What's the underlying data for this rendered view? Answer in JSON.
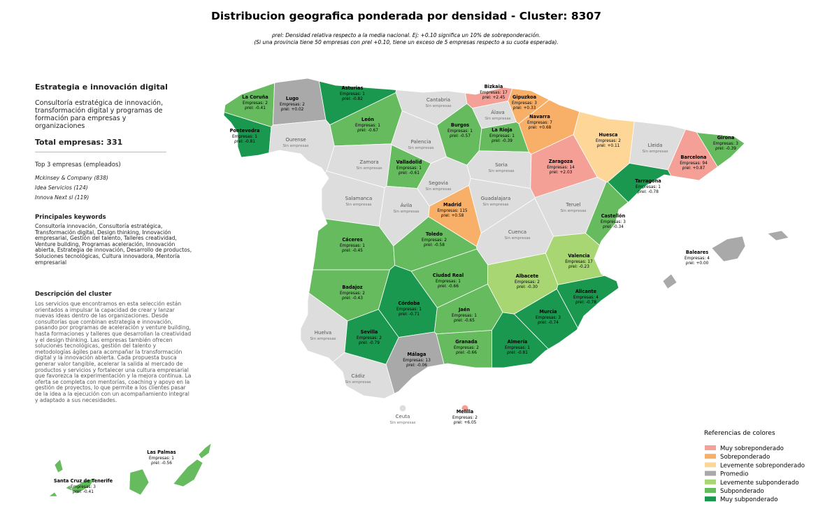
{
  "title": "Distribucion geografica ponderada por densidad - Cluster: 8307",
  "subtitle": [
    "ρrel: Densidad relativa respecto a la media nacional. Ej: +0.10 significa un 10% de sobreponderación.",
    "(Si una provincia tiene 50 empresas con ρrel +0.10, tiene un exceso de 5 empresas respecto a su cuota esperada)."
  ],
  "sidebar": {
    "heading": "Estrategia e innovación digital",
    "description": "Consultoría estratégica de innovación, transformación digital y programas de formación para empresas y organizaciones",
    "total": "Total empresas: 331",
    "top_title": "Top 3 empresas (empleados)",
    "top": [
      "Mckinsey & Company (838)",
      "Idea Servicios (124)",
      "Innova Next sl (119)"
    ],
    "keywords_title": "Principales keywords",
    "keywords": "Consultoría innovación, Consultoría estratégica, Transformación digital, Design thinking, Innovación empresarial, Gestión del talento, Talleres creatividad, Venture building, Programas aceleración, Innovación abierta, Estrategia de innovación, Desarrollo de productos, Soluciones tecnológicas, Cultura innovadora, Mentoría empresarial",
    "cluster_title": "Descripción del cluster",
    "cluster_text": "Los servicios que encontramos en esta selección están orientados a impulsar la capacidad de crear y lanzar nuevas ideas dentro de las organizaciones. Desde consultorías que combinan estrategia e innovación, pasando por programas de aceleración y venture building, hasta formaciones y talleres que desarrollan la creatividad y el design thinking. Las empresas también ofrecen soluciones tecnológicas, gestión del talento y metodologías ágiles para acompañar la transformación digital y la innovación abierta. Cada propuesta busca generar valor tangible, acelerar la salida al mercado de productos y servicios y fortalecer una cultura empresarial que favorezca la experimentación y la mejora continua. La oferta se completa con mentorías, coaching y apoyo en la gestión de proyectos, lo que permite a los clientes pasar de la idea a la ejecución con un acompañamiento integral y adaptado a sus necesidades."
  },
  "provinces": [
    {
      "name": "La Coruña",
      "empresas": "Empresas: 2",
      "rho": "ρrel: -0.41",
      "color": "#66bb5f"
    },
    {
      "name": "Lugo",
      "empresas": "Empresas: 2",
      "rho": "ρrel: +0.02",
      "color": "#a9a9a9"
    },
    {
      "name": "Asturias",
      "empresas": "Empresas: 1",
      "rho": "ρrel: -0.82",
      "color": "#1a9850"
    },
    {
      "name": "Cantabria",
      "status": "Sin empresas",
      "color": "#dddddd"
    },
    {
      "name": "Bizkaia",
      "empresas": "Empresas: 17",
      "rho": "ρrel: +2.45",
      "color": "#f4a097"
    },
    {
      "name": "Gipuzkoa",
      "empresas": "Empresas: 3",
      "rho": "ρrel: +0.33",
      "color": "#f8b068"
    },
    {
      "name": "Álava",
      "status": "Sin empresas",
      "color": "#dddddd"
    },
    {
      "name": "Navarra",
      "empresas": "Empresas: 7",
      "rho": "ρrel: +0.68",
      "color": "#f8b068"
    },
    {
      "name": "Pontevedra",
      "empresas": "Empresas: 1",
      "rho": "ρrel: -0.81",
      "color": "#1a9850"
    },
    {
      "name": "Ourense",
      "status": "Sin empresas",
      "color": "#dddddd"
    },
    {
      "name": "León",
      "empresas": "Empresas: 1",
      "rho": "ρrel: -0.67",
      "color": "#66bb5f"
    },
    {
      "name": "Palencia",
      "status": "Sin empresas",
      "color": "#dddddd"
    },
    {
      "name": "Burgos",
      "empresas": "Empresas: 1",
      "rho": "ρrel: -0.57",
      "color": "#66bb5f"
    },
    {
      "name": "La Rioja",
      "empresas": "Empresas: 1",
      "rho": "ρrel: -0.39",
      "color": "#66bb5f"
    },
    {
      "name": "Huesca",
      "empresas": "Empresas: 2",
      "rho": "ρrel: +0.11",
      "color": "#fdd698"
    },
    {
      "name": "Lleida",
      "status": "Sin empresas",
      "color": "#dddddd"
    },
    {
      "name": "Girona",
      "empresas": "Empresas: 3",
      "rho": "ρrel: -0.39",
      "color": "#66bb5f"
    },
    {
      "name": "Zamora",
      "status": "Sin empresas",
      "color": "#dddddd"
    },
    {
      "name": "Valladolid",
      "empresas": "Empresas: 1",
      "rho": "ρrel: -0.61",
      "color": "#66bb5f"
    },
    {
      "name": "Soria",
      "status": "Sin empresas",
      "color": "#dddddd"
    },
    {
      "name": "Zaragoza",
      "empresas": "Empresas: 14",
      "rho": "ρrel: +2.03",
      "color": "#f4a097"
    },
    {
      "name": "Barcelona",
      "empresas": "Empresas: 94",
      "rho": "ρrel: +0.87",
      "color": "#f4a097"
    },
    {
      "name": "Tarragona",
      "empresas": "Empresas: 1",
      "rho": "ρrel: -0.78",
      "color": "#1a9850"
    },
    {
      "name": "Salamanca",
      "status": "Sin empresas",
      "color": "#dddddd"
    },
    {
      "name": "Ávila",
      "status": "Sin empresas",
      "color": "#dddddd"
    },
    {
      "name": "Segovia",
      "status": "Sin empresas",
      "color": "#dddddd"
    },
    {
      "name": "Guadalajara",
      "status": "Sin empresas",
      "color": "#dddddd"
    },
    {
      "name": "Madrid",
      "empresas": "Empresas: 115",
      "rho": "ρrel: +0.58",
      "color": "#f8b068"
    },
    {
      "name": "Teruel",
      "status": "Sin empresas",
      "color": "#dddddd"
    },
    {
      "name": "Castellón",
      "empresas": "Empresas: 3",
      "rho": "ρrel: -0.34",
      "color": "#66bb5f"
    },
    {
      "name": "Cáceres",
      "empresas": "Empresas: 1",
      "rho": "ρrel: -0.45",
      "color": "#66bb5f"
    },
    {
      "name": "Toledo",
      "empresas": "Empresas: 2",
      "rho": "ρrel: -0.58",
      "color": "#66bb5f"
    },
    {
      "name": "Cuenca",
      "status": "Sin empresas",
      "color": "#dddddd"
    },
    {
      "name": "Valencia",
      "empresas": "Empresas: 17",
      "rho": "ρrel: -0.23",
      "color": "#a8d672"
    },
    {
      "name": "Badajoz",
      "empresas": "Empresas: 2",
      "rho": "ρrel: -0.43",
      "color": "#66bb5f"
    },
    {
      "name": "Ciudad Real",
      "empresas": "Empresas: 1",
      "rho": "ρrel: -0.66",
      "color": "#66bb5f"
    },
    {
      "name": "Albacete",
      "empresas": "Empresas: 2",
      "rho": "ρrel: -0.30",
      "color": "#a8d672"
    },
    {
      "name": "Alicante",
      "empresas": "Empresas: 4",
      "rho": "ρrel: -0.78",
      "color": "#1a9850"
    },
    {
      "name": "Córdoba",
      "empresas": "Empresas: 1",
      "rho": "ρrel: -0.71",
      "color": "#1a9850"
    },
    {
      "name": "Jaén",
      "empresas": "Empresas: 1",
      "rho": "ρrel: -0.65",
      "color": "#66bb5f"
    },
    {
      "name": "Murcia",
      "empresas": "Empresas: 3",
      "rho": "ρrel: -0.74",
      "color": "#1a9850"
    },
    {
      "name": "Huelva",
      "status": "Sin empresas",
      "color": "#dddddd"
    },
    {
      "name": "Sevilla",
      "empresas": "Empresas: 2",
      "rho": "ρrel: -0.79",
      "color": "#1a9850"
    },
    {
      "name": "Granada",
      "empresas": "Empresas: 2",
      "rho": "ρrel: -0.66",
      "color": "#66bb5f"
    },
    {
      "name": "Almería",
      "empresas": "Empresas: 1",
      "rho": "ρrel: -0.81",
      "color": "#1a9850"
    },
    {
      "name": "Málaga",
      "empresas": "Empresas: 13",
      "rho": "ρrel: -0.06",
      "color": "#a9a9a9"
    },
    {
      "name": "Cádiz",
      "status": "Sin empresas",
      "color": "#dddddd"
    },
    {
      "name": "Ceuta",
      "status": "Sin empresas",
      "color": "#dddddd"
    },
    {
      "name": "Melilla",
      "empresas": "Empresas: 2",
      "rho": "ρrel: +6.05",
      "color": "#f4a097"
    },
    {
      "name": "Baleares",
      "empresas": "Empresas: 4",
      "rho": "ρrel: +0.00",
      "color": "#a9a9a9"
    },
    {
      "name": "Las Palmas",
      "empresas": "Empresas: 1",
      "rho": "ρrel: -0.56",
      "color": "#66bb5f"
    },
    {
      "name": "Santa Cruz de Tenerife",
      "empresas": "Empresas: 3",
      "rho": "ρrel: -0.41",
      "color": "#66bb5f"
    }
  ],
  "legend": {
    "title": "Referencias de colores",
    "items": [
      {
        "label": "Muy sobreponderado",
        "color": "#f4a097"
      },
      {
        "label": "Sobreponderado",
        "color": "#f8b068"
      },
      {
        "label": "Levemente sobreponderado",
        "color": "#fdd698"
      },
      {
        "label": "Promedio",
        "color": "#a9a9a9"
      },
      {
        "label": "Levemente subponderado",
        "color": "#a8d672"
      },
      {
        "label": "Subponderado",
        "color": "#66bb5f"
      },
      {
        "label": "Muy subponderado",
        "color": "#1a9850"
      }
    ]
  }
}
